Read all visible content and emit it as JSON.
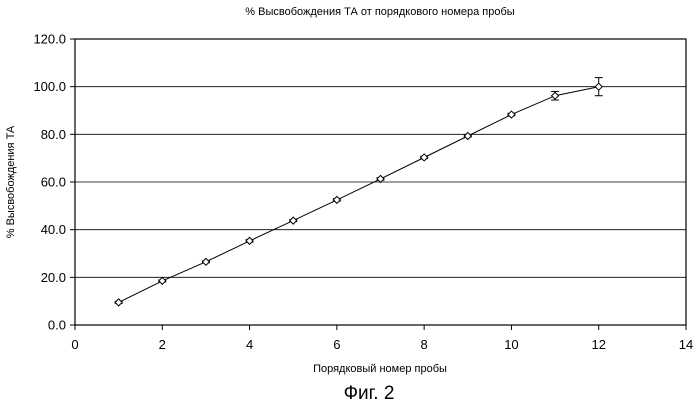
{
  "chart_data": {
    "type": "line",
    "title": "% Высвобождения ТА от порядкового номера пробы",
    "xlabel": "Порядковый номер пробы",
    "ylabel": "% Высвобождения ТА",
    "xlim": [
      0,
      14
    ],
    "ylim": [
      0,
      120
    ],
    "xticks": [
      0,
      2,
      4,
      6,
      8,
      10,
      12,
      14
    ],
    "xtick_labels": [
      "0",
      "2",
      "4",
      "6",
      "8",
      "10",
      "12",
      "14"
    ],
    "yticks": [
      0,
      20,
      40,
      60,
      80,
      100,
      120
    ],
    "ytick_labels": [
      "0.0",
      "20.0",
      "40.0",
      "60.0",
      "80.0",
      "100.0",
      "120.0"
    ],
    "grid": "horizontal",
    "marker": "diamond",
    "series": [
      {
        "x": [
          1,
          2,
          3,
          4,
          5,
          6,
          7,
          8,
          9,
          10,
          11,
          12
        ],
        "y": [
          9.5,
          18.5,
          26.5,
          35.3,
          43.8,
          52.5,
          61.3,
          70.3,
          79.3,
          88.3,
          96.2,
          100.0
        ],
        "error": [
          0.4,
          0.4,
          0.4,
          0.5,
          0.4,
          0.5,
          0.5,
          0.5,
          0.4,
          0.5,
          1.8,
          3.8
        ]
      }
    ],
    "caption": "Фиг. 2"
  }
}
